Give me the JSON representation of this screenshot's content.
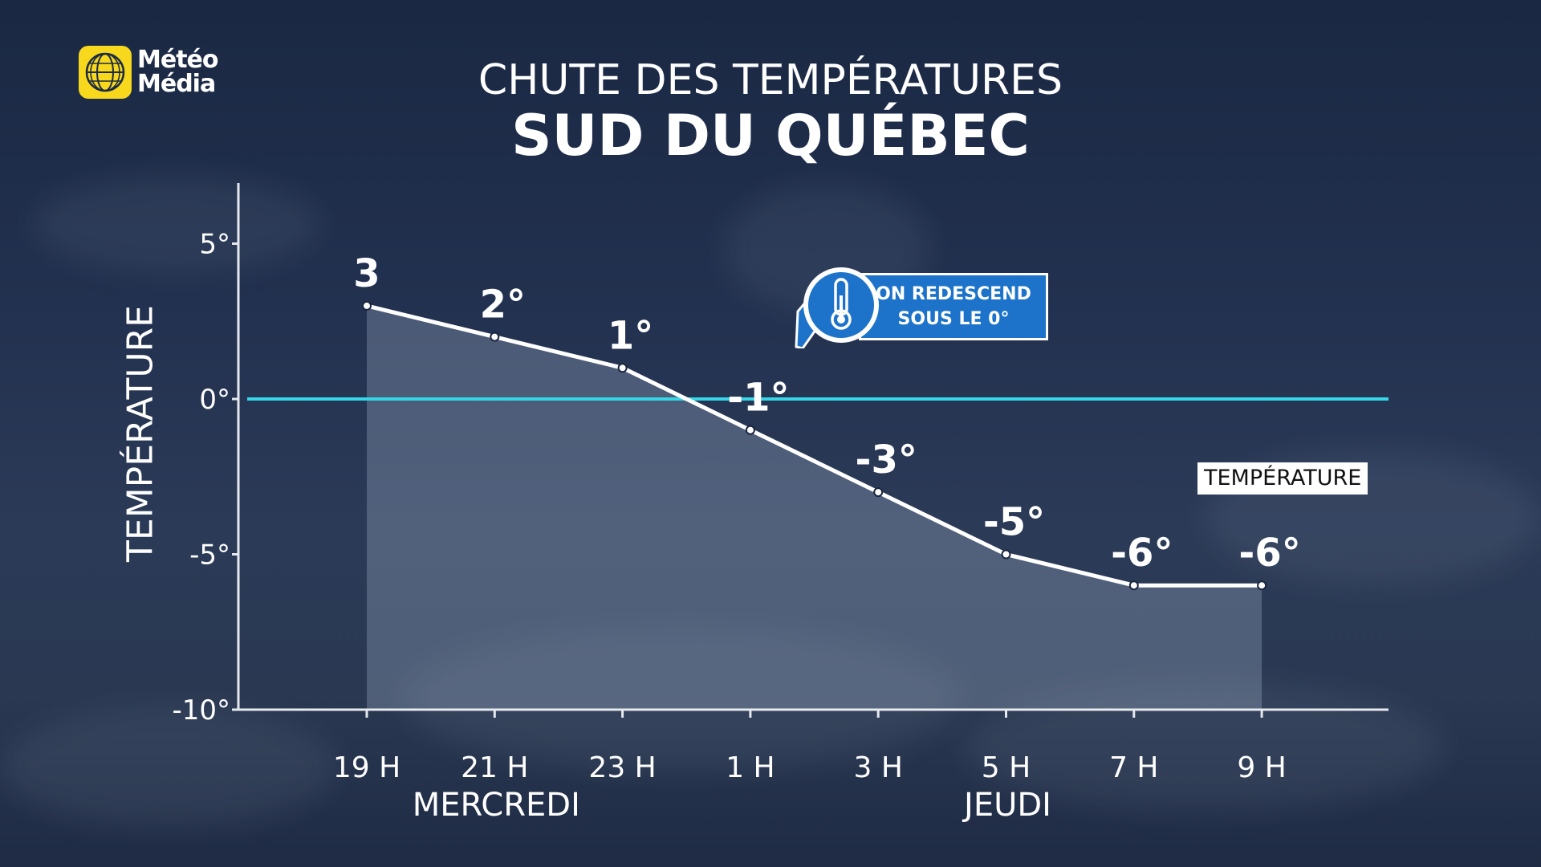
{
  "logo": {
    "line1": "Météo",
    "line2": "Média",
    "icon": "globe-logo-icon",
    "color": "#f7d81c"
  },
  "title_top": "CHUTE DES TEMPÉRATURES",
  "title_main": "SUD DU QUÉBEC",
  "callout": {
    "line1": "ON REDESCEND",
    "line2": "SOUS LE 0°",
    "icon": "thermometer-icon",
    "color": "#1c73c9"
  },
  "legend_label": "TEMPÉRATURE",
  "chart_data": {
    "type": "area",
    "title": "SUD DU QUÉBEC",
    "ylabel": "TEMPÉRATURE",
    "ylim": [
      -10,
      6.5
    ],
    "yticks": [
      {
        "value": 5,
        "label": "5°"
      },
      {
        "value": 0,
        "label": "0°"
      },
      {
        "value": -5,
        "label": "-5°"
      },
      {
        "value": -10,
        "label": "-10°"
      }
    ],
    "categories": [
      "19 H",
      "21 H",
      "23 H",
      "1 H",
      "3 H",
      "5 H",
      "7 H",
      "9 H"
    ],
    "day_labels": [
      {
        "label": "MERCREDI",
        "under": "21 H"
      },
      {
        "label": "JEUDI",
        "under": "5 H"
      }
    ],
    "series": [
      {
        "name": "TEMPÉRATURE",
        "values": [
          3,
          2,
          1,
          -1,
          -3,
          -5,
          -6,
          -6
        ],
        "labels": [
          "3",
          "2°",
          "1°",
          "-1°",
          "-3°",
          "-5°",
          "-6°",
          "-6°"
        ]
      }
    ],
    "reference_line": {
      "value": 0,
      "color": "#35d6e8"
    },
    "grid": false,
    "legend": "right"
  }
}
